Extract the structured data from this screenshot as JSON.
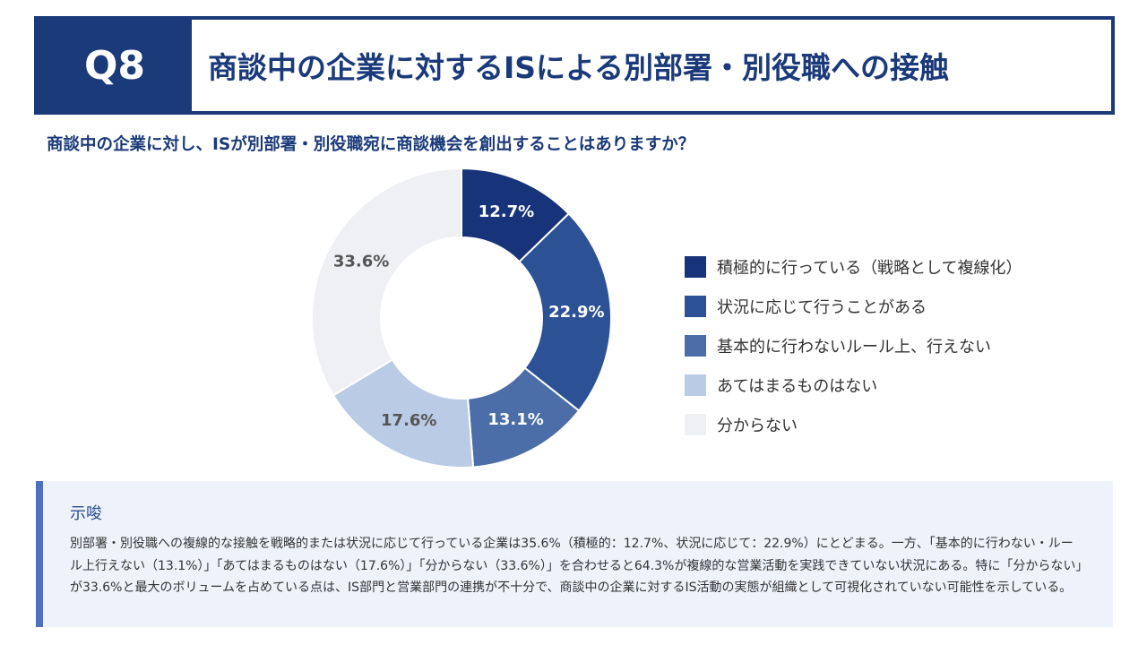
{
  "header": {
    "q_label": "Q8",
    "title": "商談中の企業に対するISによる別部署・別役職への接触"
  },
  "question": "商談中の企業に対し、ISが別部署・別役職宛に商談機会を創出することはありますか？",
  "chart_data": {
    "type": "pie",
    "categories": [
      "積極的に行っている（戦略として複線化）",
      "状況に応じて行うことがある",
      "基本的に行わないルール上、行えない",
      "あてはまるものはない",
      "分からない"
    ],
    "values": [
      12.7,
      22.9,
      13.1,
      17.6,
      33.6
    ],
    "labels": [
      "12.7%",
      "22.9%",
      "13.1%",
      "17.6%",
      "33.6%"
    ],
    "colors": [
      "#17347a",
      "#2c5295",
      "#4b6ea8",
      "#b9cbe5",
      "#eef0f4"
    ],
    "label_colors": [
      "#ffffff",
      "#ffffff",
      "#ffffff",
      "#555555",
      "#555555"
    ],
    "legend_position": "right"
  },
  "insight": {
    "title": "示唆",
    "body": "別部署・別役職への複線的な接触を戦略的または状況に応じて行っている企業は35.6%（積極的：12.7%、状況に応じて：22.9%）にとどまる。一方、「基本的に行わない・ルール上行えない（13.1%）」「あてはまるものはない（17.6%）」「分からない（33.6%）」を合わせると64.3%が複線的な営業活動を実践できていない状況にある。特に「分からない」が33.6%と最大のボリュームを占めている点は、IS部門と営業部門の連携が不十分で、商談中の企業に対するIS活動の実態が組織として可視化されていない可能性を示している。"
  }
}
